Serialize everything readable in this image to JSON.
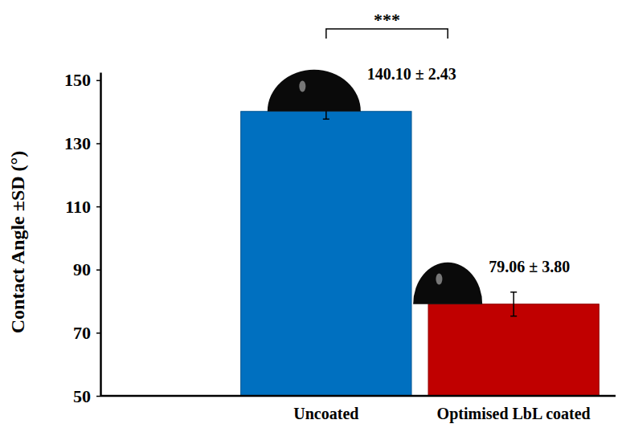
{
  "chart_data": {
    "type": "bar",
    "y_label": "Contact Angle ±SD (°)",
    "categories": [
      "Uncoated",
      "Optimised LbL coated"
    ],
    "values": [
      140.1,
      79.06
    ],
    "errors": [
      2.43,
      3.8
    ],
    "value_labels": [
      "140.10 ± 2.43",
      "79.06 ± 3.80"
    ],
    "data_labels": true,
    "colors": [
      "#0070c0",
      "#c00000"
    ],
    "ylim": [
      50,
      152.5
    ],
    "yticks": [
      50,
      70,
      90,
      110,
      130,
      150
    ],
    "annotations": [
      "***"
    ]
  }
}
